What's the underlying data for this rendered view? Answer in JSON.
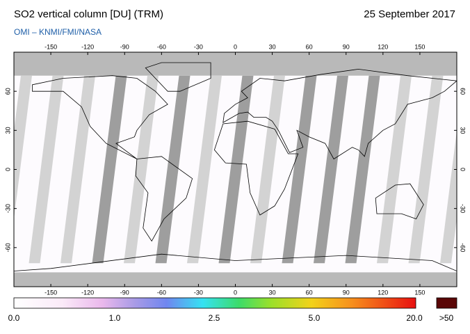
{
  "header": {
    "title": "SO2 vertical column [DU] (TRM)",
    "source": "OMI  –  KNMI/FMI/NASA",
    "date": "25 September 2017"
  },
  "map": {
    "longitude_ticks": [
      -150,
      -120,
      -90,
      -60,
      -30,
      0,
      30,
      60,
      90,
      120,
      150
    ],
    "latitude_ticks": [
      60,
      30,
      0,
      -30,
      -60
    ]
  },
  "colorbar": {
    "labels": [
      "0.0",
      "1.0",
      "2.5",
      "5.0",
      "20.0"
    ],
    "overflow_label": ">50"
  }
}
